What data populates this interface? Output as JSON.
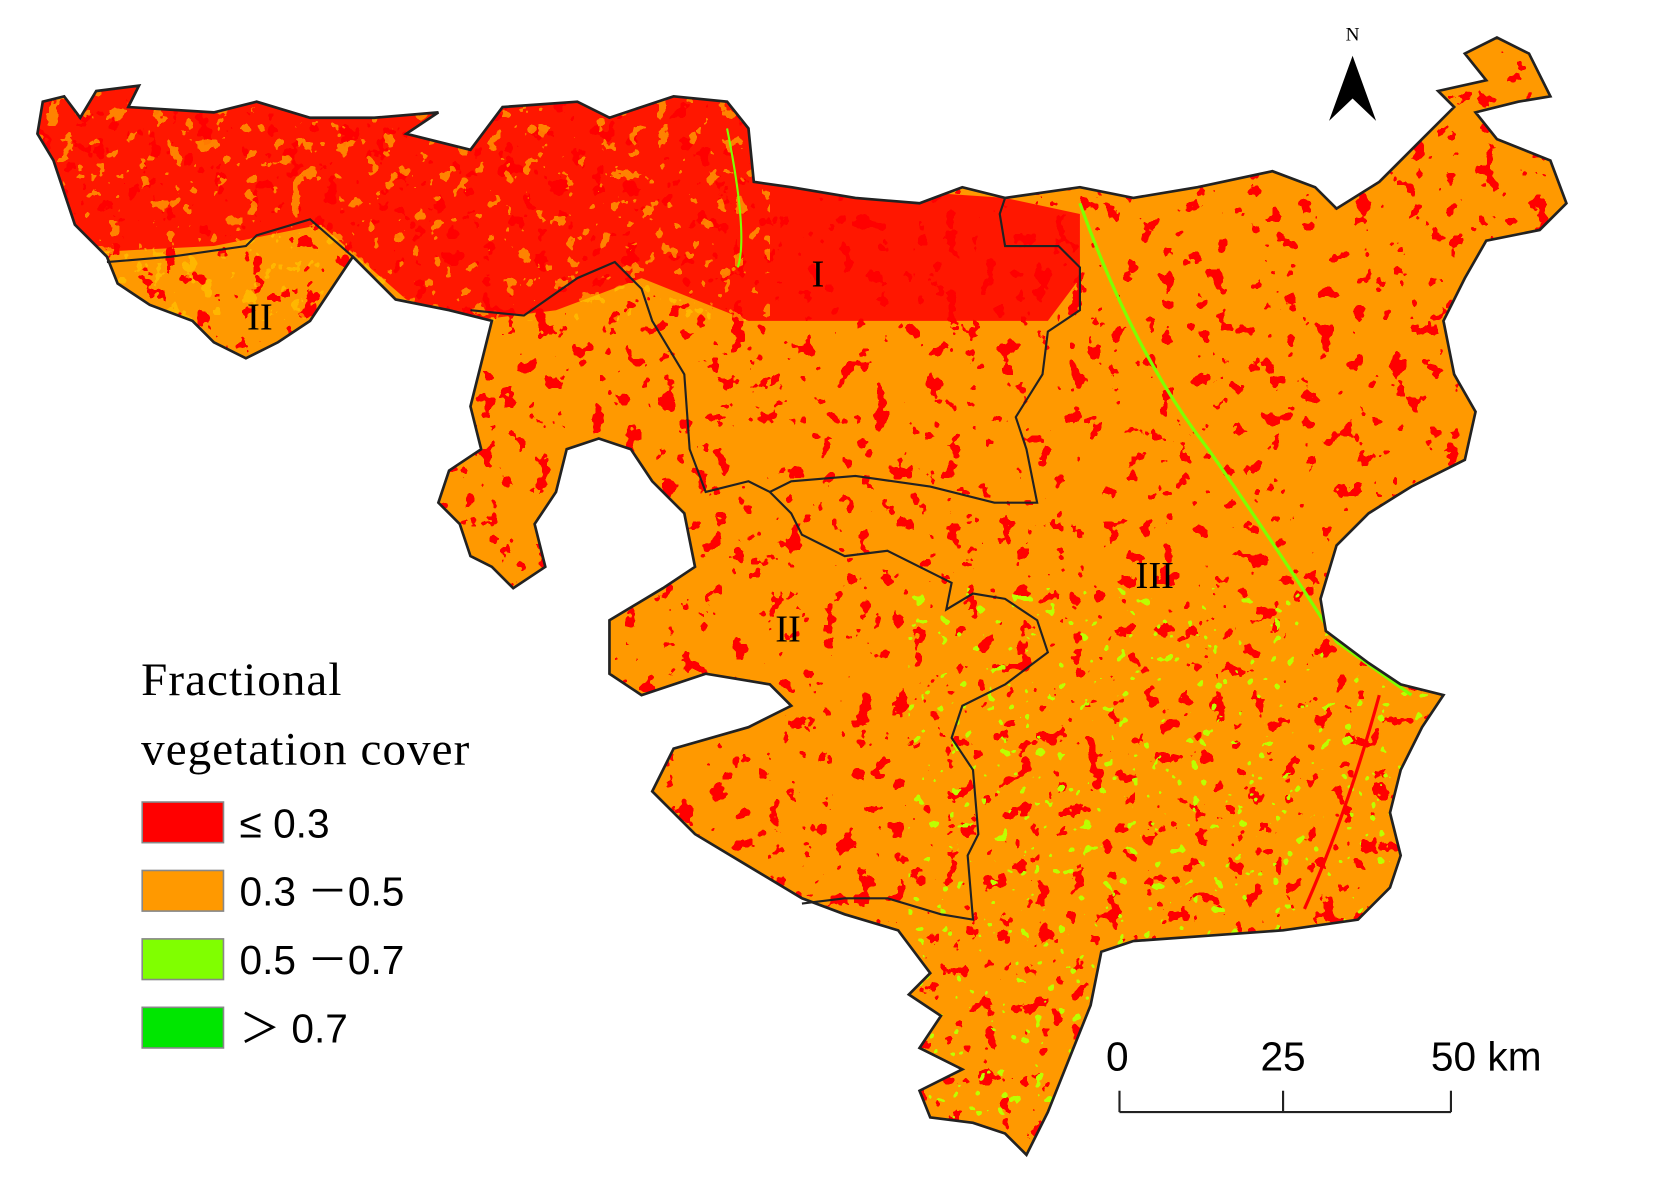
{
  "map": {
    "north_label": "N",
    "region_labels": [
      "I",
      "II",
      "II",
      "III"
    ],
    "legend": {
      "title_lines": [
        "Fractional",
        "vegetation cover"
      ],
      "items": [
        {
          "label": "≤ 0.3",
          "color": "#ff0000"
        },
        {
          "label": "0.3 －0.5",
          "color": "#ff9900"
        },
        {
          "label": "0.5 －0.7",
          "color": "#80ff00"
        },
        {
          "label": "＞ 0.7",
          "color": "#00e600"
        }
      ]
    },
    "scale_bar": {
      "labels": [
        "0",
        "25",
        "50 km"
      ]
    }
  }
}
